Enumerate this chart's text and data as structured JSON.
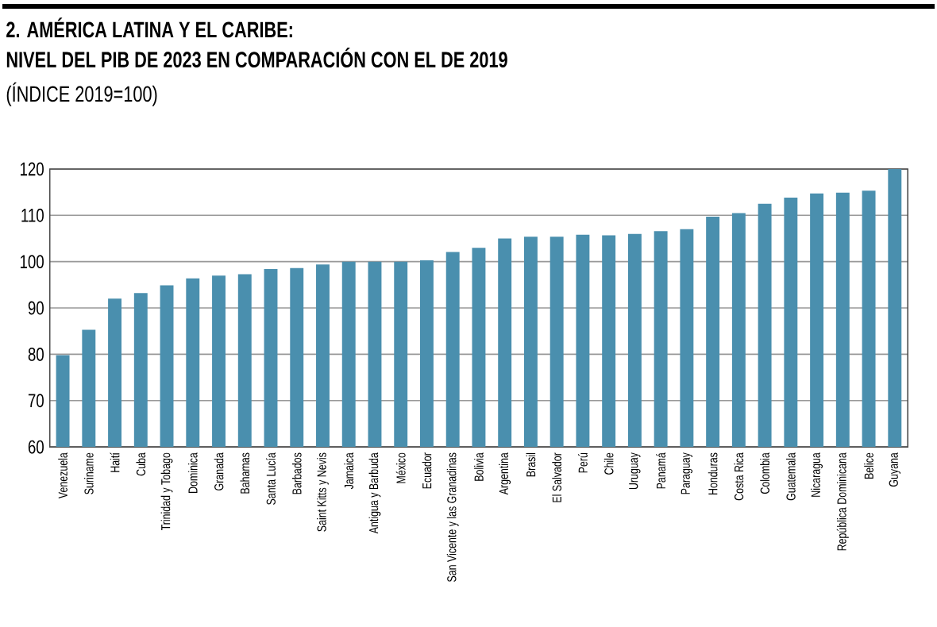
{
  "chart_data": {
    "type": "bar",
    "title": "2. AMÉRICA LATINA Y EL CARIBE:",
    "subtitle": "NIVEL DEL PIB DE 2023 EN COMPARACIÓN CON EL DE 2019",
    "ylabel": "(ÍNDICE 2019=100)",
    "categories": [
      "Venezuela",
      "Suriname",
      "Haití",
      "Cuba",
      "Trinidad y Tobago",
      "Dominica",
      "Granada",
      "Bahamas",
      "Santa Lucía",
      "Barbados",
      "Saint Kitts y Nevis",
      "Jamaica",
      "Antigua y Barbuda",
      "México",
      "Ecuador",
      "San Vicente y las Granadinas",
      "Bolivia",
      "Argentina",
      "Brasil",
      "El Salvador",
      "Perú",
      "Chile",
      "Uruguay",
      "Panamá",
      "Paraguay",
      "Honduras",
      "Costa Rica",
      "Colombia",
      "Guatemala",
      "Nicaragua",
      "República Dominicana",
      "Belice",
      "Guyana"
    ],
    "values": [
      79.8,
      85.3,
      92.0,
      93.2,
      94.9,
      96.4,
      97.0,
      97.3,
      98.4,
      98.6,
      99.4,
      100.0,
      100.0,
      100.0,
      100.3,
      102.1,
      103.0,
      105.0,
      105.4,
      105.4,
      105.8,
      105.7,
      106.0,
      106.6,
      107.0,
      109.7,
      110.5,
      112.5,
      113.8,
      114.7,
      114.9,
      115.3,
      120.0
    ],
    "color": "#4a8fae",
    "ylim": [
      60,
      120
    ],
    "yticks": [
      60,
      70,
      80,
      90,
      100,
      110,
      120
    ],
    "grid": "y"
  }
}
